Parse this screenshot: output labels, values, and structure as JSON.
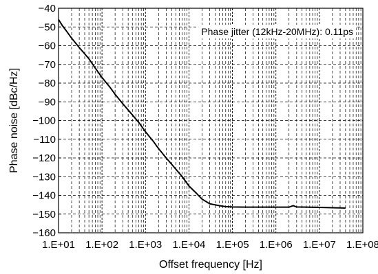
{
  "chart_data": {
    "type": "line",
    "title": "",
    "xlabel": "Offset frequency [Hz]",
    "ylabel": "Phase noise [dBc/Hz]",
    "x_scale": "log",
    "xlim": [
      10,
      100000000
    ],
    "ylim": [
      -160,
      -40
    ],
    "grid": true,
    "x_tick_values": [
      10,
      100,
      1000,
      10000,
      100000,
      1000000,
      10000000,
      100000000
    ],
    "x_tick_labels": [
      "1.E+01",
      "1.E+02",
      "1.E+03",
      "1.E+04",
      "1.E+05",
      "1.E+06",
      "1.E+07",
      "1.E+08"
    ],
    "y_ticks": [
      -40,
      -50,
      -60,
      -70,
      -80,
      -90,
      -100,
      -110,
      -120,
      -130,
      -140,
      -150,
      -160
    ],
    "y_tick_labels": [
      "−40",
      "−50",
      "−60",
      "−70",
      "−80",
      "−90",
      "−100",
      "−110",
      "−120",
      "−130",
      "−140",
      "−150",
      "−160"
    ],
    "annotation": "Phase jitter (12kHz-20MHz): 0.11ps",
    "series": [
      {
        "color": "#000000",
        "x": [
          10,
          12,
          15,
          20,
          30,
          50,
          70,
          100,
          150,
          200,
          300,
          500,
          700,
          1000,
          1500,
          2000,
          3000,
          5000,
          7000,
          10000,
          15000,
          20000,
          30000,
          50000,
          70000,
          100000,
          200000,
          500000,
          1000000,
          2000000,
          2500000,
          3000000,
          5000000,
          10000000,
          20000000,
          30000000,
          40000000
        ],
        "y": [
          -46,
          -49,
          -52,
          -56,
          -61,
          -67,
          -72,
          -77,
          -82,
          -86,
          -91,
          -97,
          -101,
          -106,
          -111,
          -115,
          -120,
          -126,
          -130,
          -135,
          -139,
          -142,
          -144.5,
          -145.5,
          -146,
          -146.2,
          -146.3,
          -146.3,
          -146.3,
          -146.3,
          -145.5,
          -146.2,
          -146.3,
          -146.4,
          -146.6,
          -146.7,
          -146.8
        ]
      }
    ]
  }
}
